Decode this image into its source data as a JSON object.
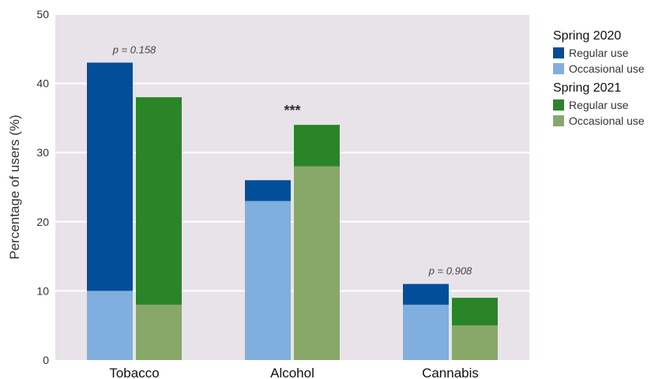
{
  "chart_data": {
    "type": "bar",
    "stacked": true,
    "categories": [
      "Tobacco",
      "Alcohol",
      "Cannabis"
    ],
    "ylabel": "Percentage of users (%)",
    "xlabel": "",
    "ylim": [
      0,
      50
    ],
    "yticks": [
      0,
      10,
      20,
      30,
      40,
      50
    ],
    "grid": true,
    "legend_position": "right",
    "groups": [
      {
        "name": "Spring 2020",
        "series": [
          {
            "name": "Occasional use",
            "values": [
              10,
              23,
              8
            ],
            "color": "#80aede"
          },
          {
            "name": "Regular use",
            "values": [
              33,
              3,
              3
            ],
            "color": "#034e9a"
          }
        ]
      },
      {
        "name": "Spring 2021",
        "series": [
          {
            "name": "Occasional use",
            "values": [
              8,
              28,
              5
            ],
            "color": "#88a86a"
          },
          {
            "name": "Regular use",
            "values": [
              30,
              6,
              4
            ],
            "color": "#2a8428"
          }
        ]
      }
    ],
    "annotations": [
      {
        "category": "Tobacco",
        "text": "p = 0.158",
        "style": "italic"
      },
      {
        "category": "Alcohol",
        "text": "***",
        "style": "bold"
      },
      {
        "category": "Cannabis",
        "text": "p = 0.908",
        "style": "italic"
      }
    ]
  }
}
